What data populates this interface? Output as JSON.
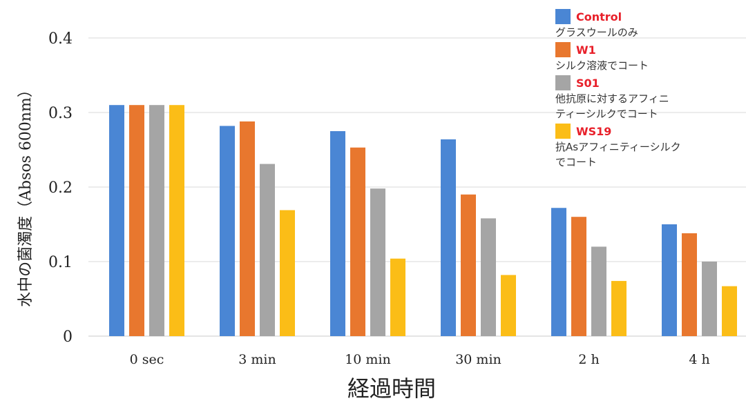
{
  "chart_data": {
    "type": "bar",
    "xlabel": "経過時間",
    "ylabel": "水中の菌濁度（Absos 600nm）",
    "ylim": [
      0,
      0.4
    ],
    "yticks": [
      "0",
      "0.1",
      "0.2",
      "0.3",
      "0.4"
    ],
    "categories": [
      "0 sec",
      "3 min",
      "10 min",
      "30 min",
      "2 h",
      "4 h"
    ],
    "grid": true,
    "legend_position": "top-right",
    "series": [
      {
        "name": "Control",
        "description": "グラスウールのみ",
        "color": "#4a86d4",
        "values": [
          0.31,
          0.282,
          0.275,
          0.264,
          0.172,
          0.15
        ]
      },
      {
        "name": "W1",
        "description": "シルク溶液でコート",
        "color": "#e8772e",
        "values": [
          0.31,
          0.288,
          0.253,
          0.19,
          0.16,
          0.138
        ]
      },
      {
        "name": "S01",
        "description": "他抗原に対するアフィニ\nティーシルクでコート",
        "color": "#a5a5a5",
        "values": [
          0.31,
          0.231,
          0.198,
          0.158,
          0.12,
          0.1
        ]
      },
      {
        "name": "WS19",
        "description": "抗Asアフィニティーシルク\nでコート",
        "color": "#fbbd17",
        "values": [
          0.31,
          0.169,
          0.104,
          0.082,
          0.074,
          0.067
        ]
      }
    ]
  }
}
